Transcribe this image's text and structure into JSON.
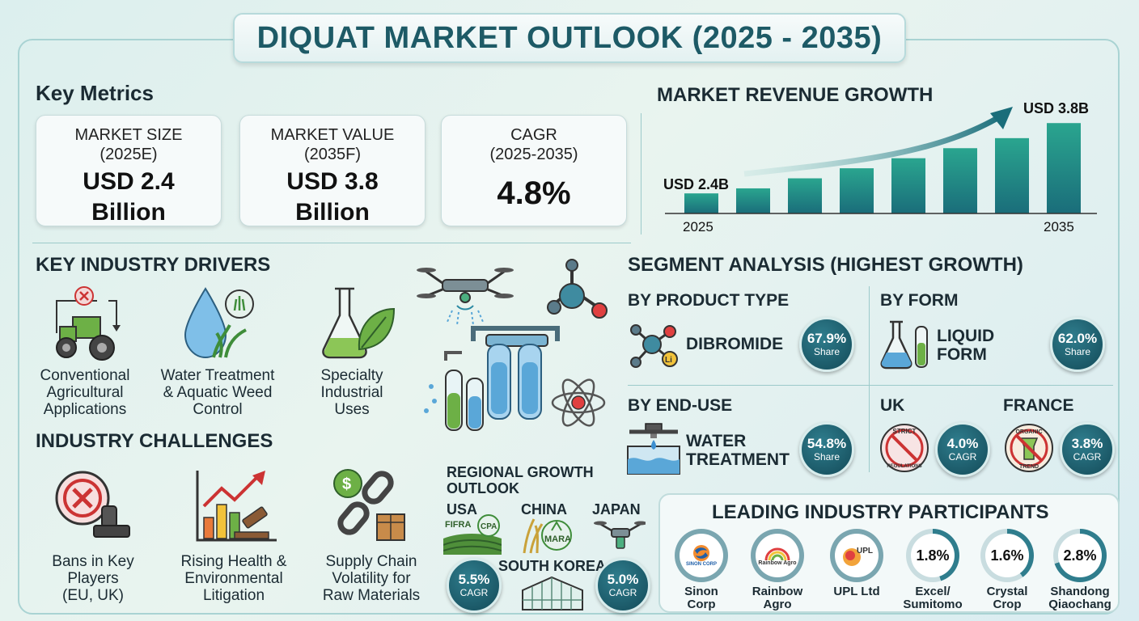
{
  "title": "DIQUAT MARKET OUTLOOK (2025 - 2035)",
  "key_metrics": {
    "heading": "Key Metrics",
    "cards": [
      {
        "label_line1": "MARKET SIZE",
        "label_line2": "(2025E)",
        "value_line1": "USD 2.4",
        "value_line2": "Billion"
      },
      {
        "label_line1": "MARKET VALUE",
        "label_line2": "(2035F)",
        "value_line1": "USD 3.8",
        "value_line2": "Billion"
      },
      {
        "label_line1": "CAGR",
        "label_line2": "(2025-2035)",
        "value_line1": "4.8%",
        "value_line2": ""
      }
    ]
  },
  "chart_data": {
    "type": "bar",
    "title": "MARKET REVENUE GROWTH",
    "categories": [
      "2025",
      "",
      "",
      "",
      "",
      "",
      "",
      "2035"
    ],
    "values": [
      2.4,
      2.5,
      2.7,
      2.9,
      3.1,
      3.3,
      3.5,
      3.8
    ],
    "start_label": "USD 2.4B",
    "end_label": "USD 3.8B",
    "x_start_label": "2025",
    "x_end_label": "2035",
    "ylim": [
      2.0,
      3.9
    ],
    "unit": "USD Billion",
    "colors": [
      "#2aa58f",
      "#1a6d7a"
    ]
  },
  "drivers": {
    "heading": "KEY INDUSTRY DRIVERS",
    "items": [
      {
        "line1": "Conventional",
        "line2": "Agricultural",
        "line3": "Applications"
      },
      {
        "line1": "Water Treatment",
        "line2": "& Aquatic Weed",
        "line3": "Control"
      },
      {
        "line1": "Specialty",
        "line2": "Industrial",
        "line3": "Uses"
      }
    ]
  },
  "challenges": {
    "heading": "INDUSTRY CHALLENGES",
    "items": [
      {
        "line1": "Bans in Key",
        "line2": "Players",
        "line3": "(EU, UK)"
      },
      {
        "line1": "Rising Health &",
        "line2": "Environmental",
        "line3": "Litigation"
      },
      {
        "line1": "Supply Chain",
        "line2": "Volatility for",
        "line3": "Raw Materials"
      }
    ]
  },
  "segments": {
    "heading": "SEGMENT ANALYSIS (HIGHEST GROWTH)",
    "product_type": {
      "head": "BY PRODUCT TYPE",
      "name": "DIBROMIDE",
      "value": "67.9%",
      "sub": "Share",
      "icon_text": "Li"
    },
    "form": {
      "head": "BY FORM",
      "name_line1": "LIQUID",
      "name_line2": "FORM",
      "value": "62.0%",
      "sub": "Share"
    },
    "end_use": {
      "head": "BY END-USE",
      "name_line1": "WATER",
      "name_line2": "TREATMENT",
      "value": "54.8%",
      "sub": "Share"
    },
    "uk": {
      "head": "UK",
      "value": "4.0%",
      "sub": "CAGR",
      "stamp_line1": "STRICT",
      "stamp_line2": "REGULATIONS"
    },
    "france": {
      "head": "FRANCE",
      "value": "3.8%",
      "sub": "CAGR",
      "stamp_line1": "ORGANIC",
      "stamp_line2": "TREND"
    }
  },
  "regional": {
    "heading_line1": "REGIONAL GROWTH",
    "heading_line2": "OUTLOOK",
    "usa": {
      "label": "USA",
      "tag1": "FIFRA",
      "tag2": "CPA",
      "value": "5.5%",
      "sub": "CAGR"
    },
    "china": {
      "label": "CHINA",
      "tag": "MARA"
    },
    "japan": {
      "label": "JAPAN"
    },
    "south_korea": {
      "label": "SOUTH KOREA",
      "value": "5.0%",
      "sub": "CAGR"
    }
  },
  "participants": {
    "heading": "LEADING INDUSTRY PARTICIPANTS",
    "items": [
      {
        "logo_text": "SINON CORP",
        "name_line1": "Sinon",
        "name_line2": "Corp"
      },
      {
        "logo_text": "Rainbow Agro",
        "name_line1": "Rainbow",
        "name_line2": "Agro"
      },
      {
        "logo_text": "UPL",
        "name_line1": "UPL Ltd",
        "name_line2": ""
      },
      {
        "logo_text": "1.8%",
        "name_line1": "Excel/",
        "name_line2": "Sumitomo",
        "share": 1.8
      },
      {
        "logo_text": "1.6%",
        "name_line1": "Crystal",
        "name_line2": "Crop",
        "share": 1.6
      },
      {
        "logo_text": "2.8%",
        "name_line1": "Shandong",
        "name_line2": "Qiaochang",
        "share": 2.8
      }
    ]
  }
}
